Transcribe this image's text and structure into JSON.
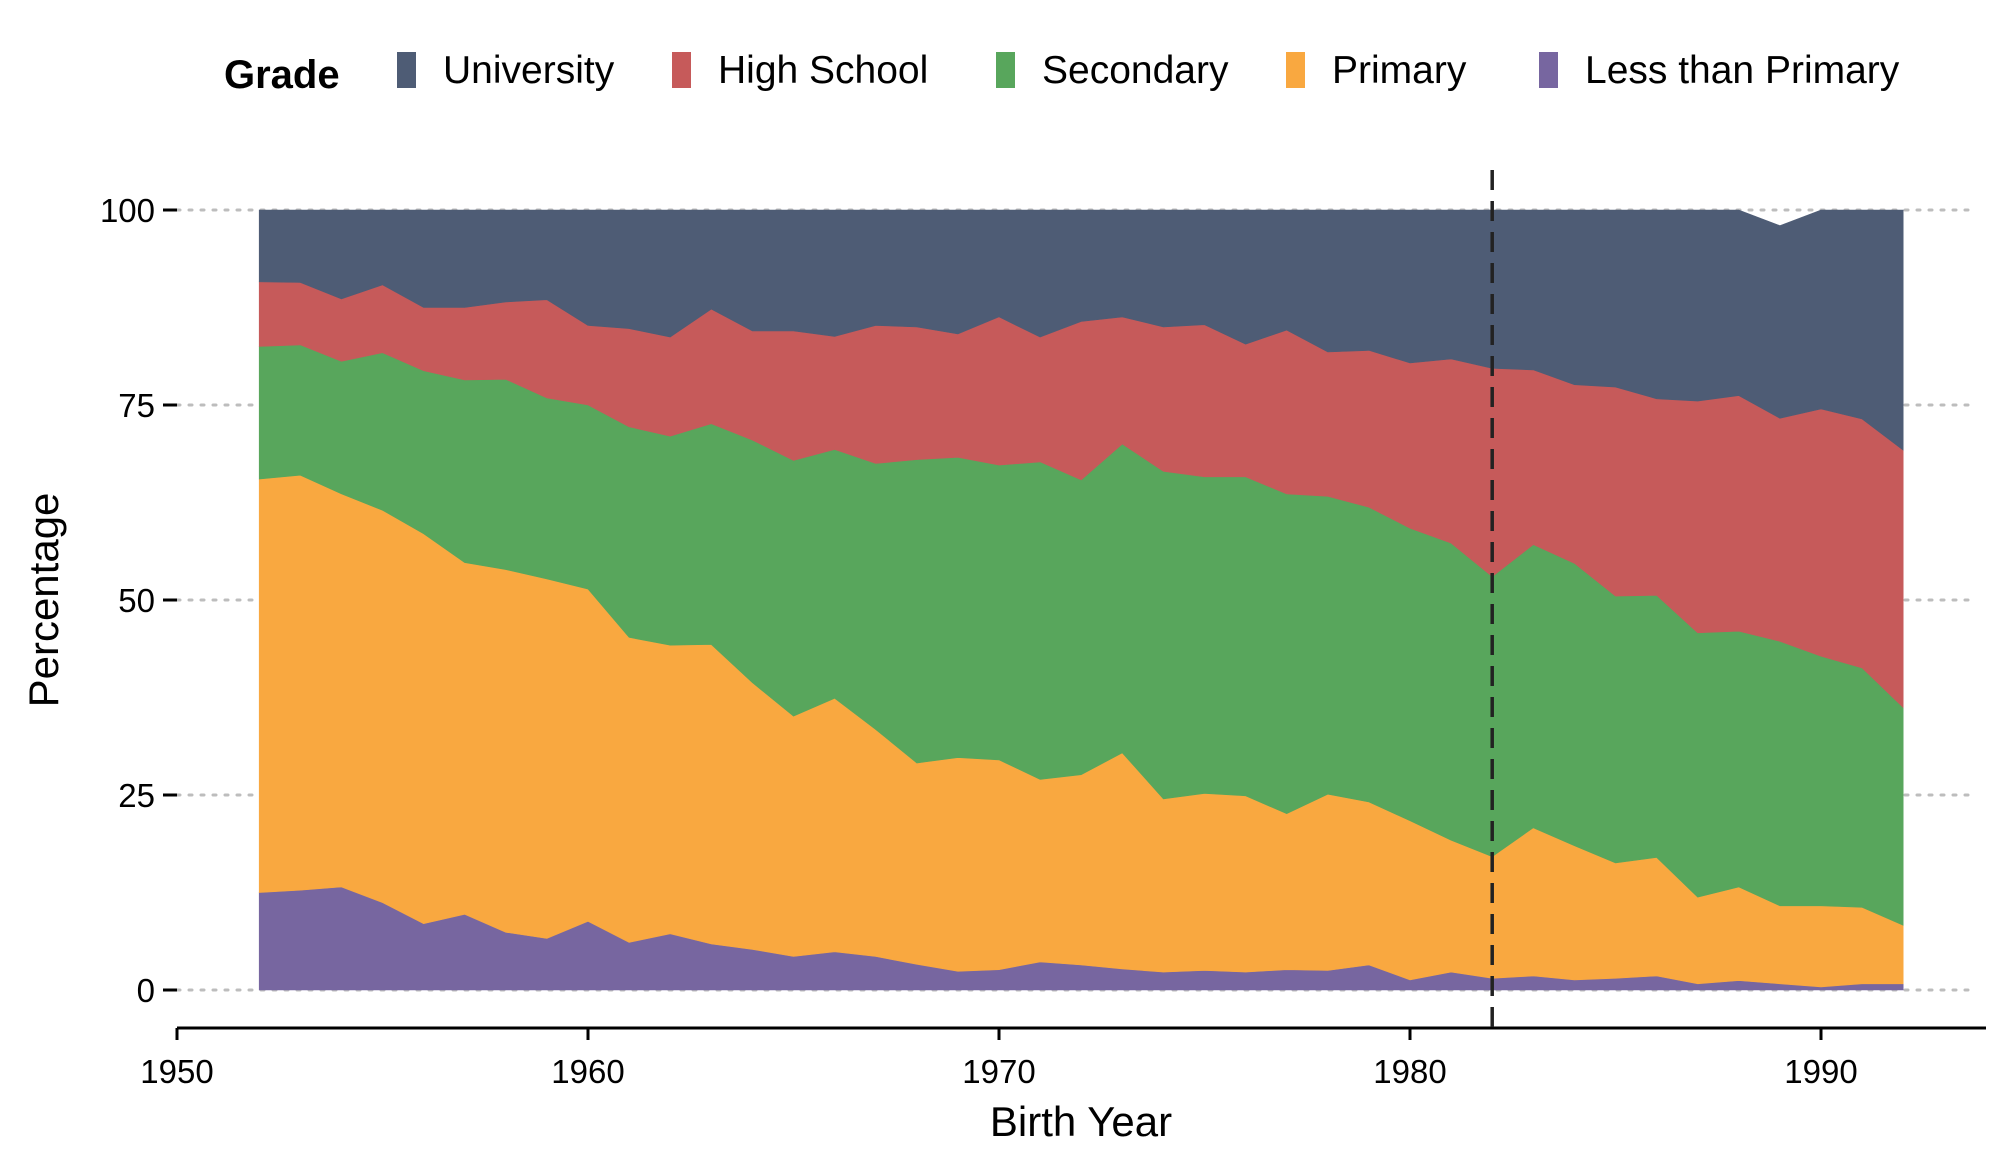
{
  "chart_data": {
    "type": "area",
    "stacked": true,
    "xlabel": "Birth Year",
    "ylabel": "Percentage",
    "xlim": [
      1950,
      1994
    ],
    "ylim": [
      0,
      100
    ],
    "x_ticks": [
      1950,
      1960,
      1970,
      1980,
      1990
    ],
    "y_ticks": [
      0,
      25,
      50,
      75,
      100
    ],
    "grid": "horizontal dotted",
    "legend": {
      "title": "Grade",
      "position": "top"
    },
    "reference_line": {
      "x": 1982,
      "style": "dashed"
    },
    "x": [
      1952,
      1953,
      1954,
      1955,
      1956,
      1957,
      1958,
      1959,
      1960,
      1961,
      1962,
      1963,
      1964,
      1965,
      1966,
      1967,
      1968,
      1969,
      1970,
      1971,
      1972,
      1973,
      1974,
      1975,
      1976,
      1977,
      1978,
      1979,
      1980,
      1981,
      1982,
      1983,
      1984,
      1985,
      1986,
      1987,
      1988,
      1989,
      1990,
      1991,
      1992
    ],
    "series": [
      {
        "name": "Less than Primary",
        "color": "#7766A0",
        "values": [
          12.5,
          12.8,
          13.2,
          11.2,
          8.5,
          9.7,
          7.4,
          6.6,
          8.8,
          6.1,
          7.2,
          5.9,
          5.2,
          4.3,
          4.9,
          4.3,
          3.3,
          2.4,
          2.6,
          3.6,
          3.2,
          2.7,
          2.3,
          2.5,
          2.3,
          2.6,
          2.5,
          3.2,
          1.3,
          2.3,
          1.5,
          1.8,
          1.3,
          1.5,
          1.8,
          0.8,
          1.2,
          0.8,
          0.4,
          0.8,
          0.8
        ]
      },
      {
        "name": "Primary",
        "color": "#F9A840",
        "values": [
          53.0,
          53.2,
          50.4,
          50.3,
          50.0,
          45.1,
          46.5,
          46.1,
          42.6,
          39.1,
          37.0,
          38.4,
          34.2,
          30.8,
          32.5,
          29.1,
          25.8,
          27.4,
          26.9,
          23.4,
          24.4,
          27.7,
          22.2,
          22.7,
          22.6,
          20.0,
          22.6,
          20.9,
          20.4,
          16.9,
          15.6,
          19.0,
          17.2,
          14.8,
          15.2,
          11.1,
          12.0,
          10.0,
          10.4,
          9.8,
          7.5
        ]
      },
      {
        "name": "Secondary",
        "color": "#58A65C",
        "values": [
          17.0,
          16.7,
          17.0,
          20.2,
          20.9,
          23.4,
          24.4,
          23.2,
          23.6,
          27.0,
          26.8,
          28.3,
          31.1,
          32.8,
          31.9,
          34.1,
          38.9,
          38.5,
          37.8,
          40.7,
          37.8,
          39.6,
          42.0,
          40.6,
          40.9,
          41.0,
          38.2,
          37.8,
          37.5,
          38.1,
          35.9,
          36.3,
          36.2,
          34.2,
          33.6,
          33.9,
          32.8,
          33.9,
          32.0,
          30.7,
          27.9
        ]
      },
      {
        "name": "High School",
        "color": "#C65A5A",
        "values": [
          8.3,
          8.0,
          8.0,
          8.7,
          8.1,
          9.3,
          9.9,
          12.6,
          10.2,
          12.6,
          12.7,
          14.7,
          14.0,
          16.6,
          14.5,
          17.7,
          17.0,
          15.8,
          19.0,
          16.0,
          20.3,
          16.3,
          18.5,
          19.5,
          17.0,
          21.0,
          18.5,
          20.1,
          21.2,
          23.6,
          26.7,
          22.4,
          22.9,
          26.8,
          25.2,
          29.7,
          30.2,
          28.6,
          31.7,
          31.9,
          33.0
        ]
      },
      {
        "name": "University",
        "color": "#4E5C75",
        "values": [
          9.2,
          9.3,
          11.4,
          9.6,
          12.5,
          12.5,
          11.8,
          11.5,
          14.8,
          15.2,
          16.3,
          12.7,
          15.5,
          15.5,
          16.2,
          14.8,
          15.0,
          15.9,
          13.7,
          16.3,
          14.3,
          13.7,
          15.0,
          14.7,
          17.2,
          15.4,
          18.2,
          18.0,
          19.6,
          19.1,
          20.3,
          20.5,
          22.4,
          22.7,
          24.2,
          24.5,
          23.8,
          24.7,
          25.5,
          26.8,
          30.8
        ]
      }
    ]
  }
}
